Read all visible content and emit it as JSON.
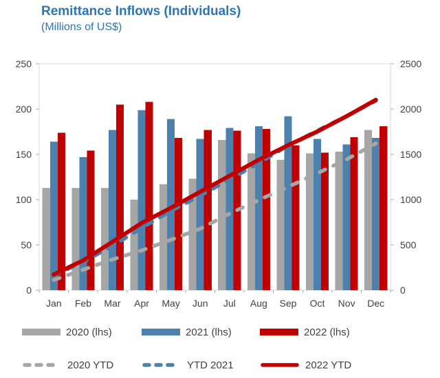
{
  "header": {
    "title": "Remittance Inflows (Individuals)",
    "subtitle": "(Millions of US$)"
  },
  "colors": {
    "title": "#2e75b6",
    "gray": "#a6a6a6",
    "blue": "#4d81ad",
    "red": "#c00000",
    "axis_text": "#404040",
    "axis_line": "#d9d9d9",
    "tick": "#ababab",
    "legend_text": "#404040"
  },
  "chart_data": {
    "type": "bar",
    "title": "Remittance Inflows (Individuals)",
    "subtitle": "(Millions of US$)",
    "grid": false,
    "legend_position": "bottom",
    "categories": [
      "Jan",
      "Feb",
      "Mar",
      "Apr",
      "May",
      "Jun",
      "Jul",
      "Aug",
      "Sep",
      "Oct",
      "Nov",
      "Dec"
    ],
    "left_axis": {
      "min": 0,
      "max": 250,
      "step": 50,
      "applies_to": "monthly bars (lhs)"
    },
    "right_axis": {
      "min": 0,
      "max": 2500,
      "step": 500,
      "applies_to": "YTD lines (rhs)"
    },
    "series": [
      {
        "name": "2020 (lhs)",
        "type": "bar",
        "axis": "left",
        "color_key": "gray",
        "dashed": false,
        "values": [
          113,
          113,
          113,
          100,
          117,
          123,
          166,
          151,
          144,
          151,
          153,
          177
        ]
      },
      {
        "name": "2021 (lhs)",
        "type": "bar",
        "axis": "left",
        "color_key": "blue",
        "dashed": false,
        "values": [
          164,
          147,
          177,
          199,
          189,
          167,
          179,
          181,
          192,
          167,
          161,
          168
        ]
      },
      {
        "name": "2022 (lhs)",
        "type": "bar",
        "axis": "left",
        "color_key": "red",
        "dashed": false,
        "values": [
          174,
          154,
          205,
          208,
          168,
          177,
          176,
          178,
          160,
          152,
          169,
          181
        ]
      },
      {
        "name": "2020 YTD",
        "type": "line",
        "axis": "right",
        "color_key": "gray",
        "dashed": true,
        "values": [
          113,
          226,
          339,
          439,
          556,
          679,
          845,
          996,
          1140,
          1291,
          1444,
          1621
        ]
      },
      {
        "name": "YTD 2021",
        "type": "line",
        "axis": "right",
        "color_key": "blue",
        "dashed": true,
        "values": [
          164,
          311,
          488,
          687,
          876,
          1043,
          1222,
          1403,
          1595,
          1762,
          1923,
          2091
        ]
      },
      {
        "name": "2022 YTD",
        "type": "line",
        "axis": "right",
        "color_key": "red",
        "dashed": false,
        "values": [
          174,
          328,
          533,
          741,
          909,
          1086,
          1262,
          1440,
          1600,
          1752,
          1921,
          2102
        ]
      }
    ]
  }
}
